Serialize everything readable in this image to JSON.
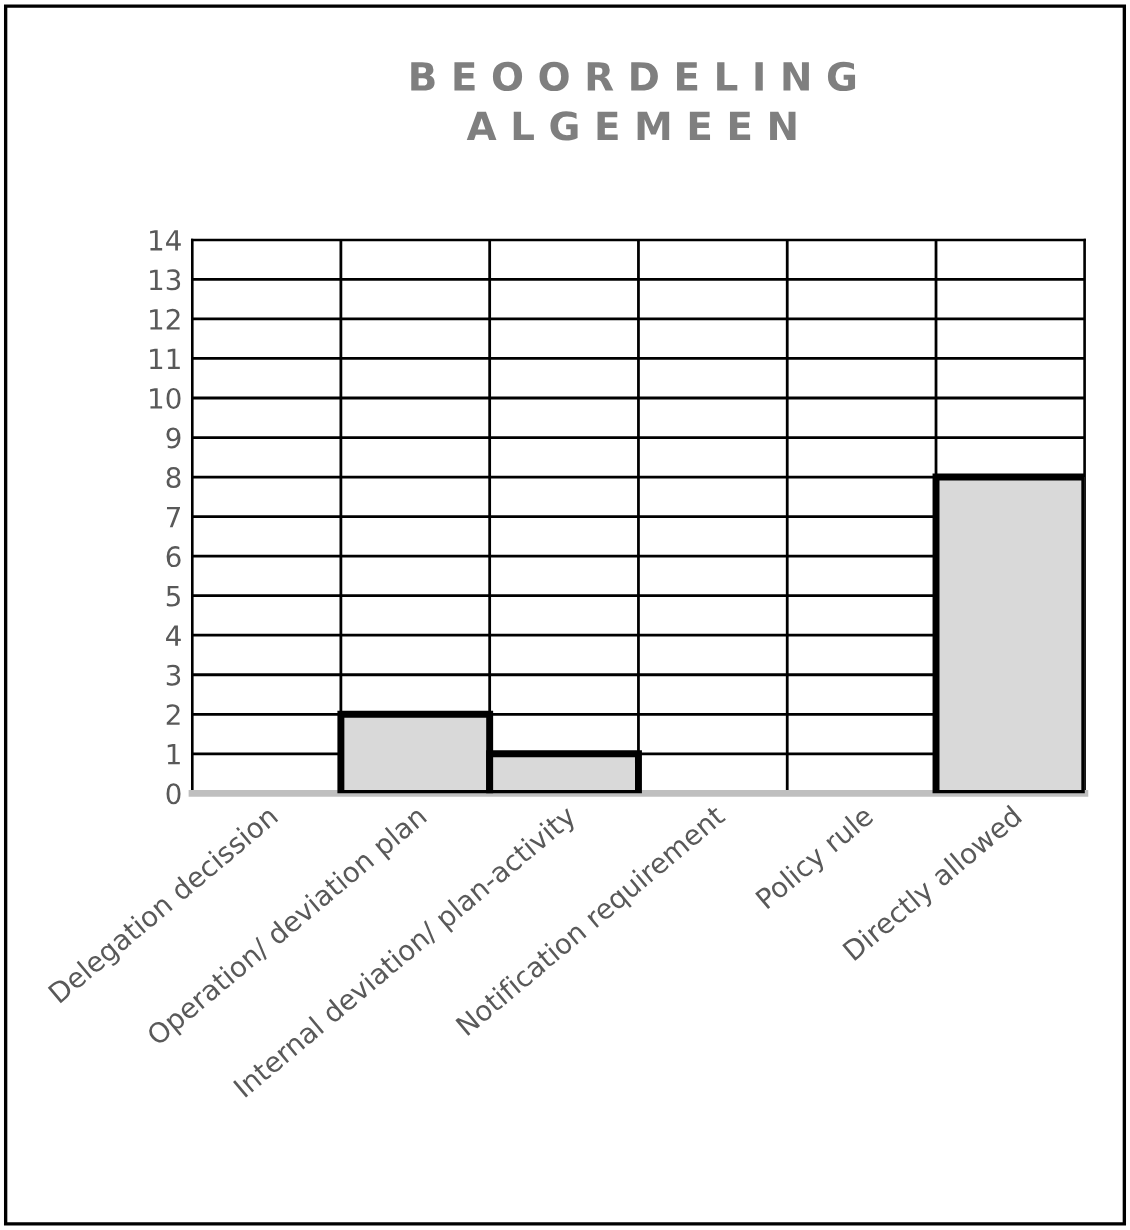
{
  "chart_data": {
    "type": "bar",
    "title": "B E O O R D E L I N G\nA L G E M E E N",
    "categories": [
      "Delegation decission",
      "Operation/ deviation plan",
      "Internal deviation/ plan-activity",
      "Notification requirement",
      "Policy rule",
      "Directly allowed"
    ],
    "values": [
      0,
      2,
      1,
      0,
      0,
      8
    ],
    "color": "#d9d9d9",
    "ylim": [
      0,
      14
    ],
    "yticks": [
      0,
      1,
      2,
      3,
      4,
      5,
      6,
      7,
      8,
      9,
      10,
      11,
      12,
      13,
      14
    ],
    "grid": true
  }
}
